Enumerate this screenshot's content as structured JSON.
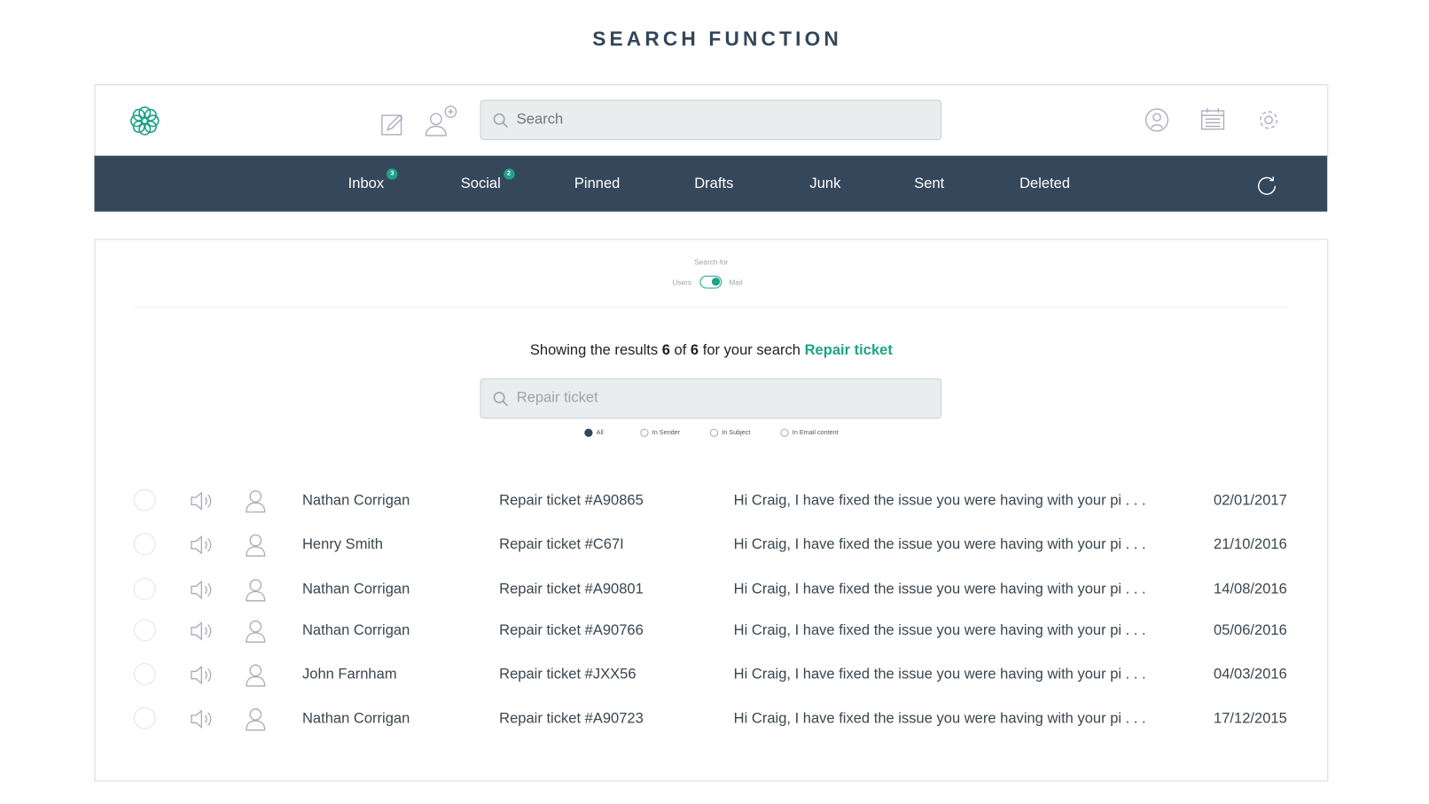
{
  "page_title": "SEARCH FUNCTION",
  "header": {
    "search_placeholder": "Search"
  },
  "nav": {
    "items": [
      {
        "label": "Inbox",
        "badge": "3"
      },
      {
        "label": "Social",
        "badge": "2"
      },
      {
        "label": "Pinned"
      },
      {
        "label": "Drafts"
      },
      {
        "label": "Junk"
      },
      {
        "label": "Sent"
      },
      {
        "label": "Deleted"
      }
    ]
  },
  "search_for": {
    "label": "Search for",
    "left": "Users",
    "right": "Mail",
    "selected": "Mail"
  },
  "results": {
    "prefix": "Showing the results",
    "shown": "6",
    "of": "of",
    "total": "6",
    "mid": "for your search",
    "query": "Repair ticket"
  },
  "query_input": {
    "value": "Repair ticket"
  },
  "filters": [
    {
      "label": "All",
      "checked": true
    },
    {
      "label": "In Sender",
      "checked": false
    },
    {
      "label": "In Subject",
      "checked": false
    },
    {
      "label": "In Email content",
      "checked": false
    }
  ],
  "messages": [
    {
      "sender": "Nathan Corrigan",
      "subject": "Repair ticket #A90865",
      "preview": "Hi Craig, I have fixed the issue you were having with your pi . . .",
      "date": "02/01/2017"
    },
    {
      "sender": "Henry Smith",
      "subject": "Repair ticket #C67I",
      "preview": "Hi Craig, I have fixed the issue you were having with your pi . . .",
      "date": "21/10/2016"
    },
    {
      "sender": "Nathan Corrigan",
      "subject": "Repair ticket #A90801",
      "preview": "Hi Craig, I have fixed the issue you were having with your pi . . .",
      "date": "14/08/2016"
    },
    {
      "sender": "Nathan Corrigan",
      "subject": "Repair ticket #A90766",
      "preview": "Hi Craig, I have fixed the issue you were having with your pi . . .",
      "date": "05/06/2016"
    },
    {
      "sender": "John Farnham",
      "subject": "Repair ticket #JXX56",
      "preview": "Hi Craig, I have fixed the issue you were having with your pi . . .",
      "date": "04/03/2016"
    },
    {
      "sender": "Nathan Corrigan",
      "subject": "Repair ticket #A90723",
      "preview": "Hi Craig, I have fixed the issue you were having with your pi . . .",
      "date": "17/12/2015"
    }
  ],
  "colors": {
    "accent": "#1fa387",
    "nav_bg": "#35475b"
  }
}
